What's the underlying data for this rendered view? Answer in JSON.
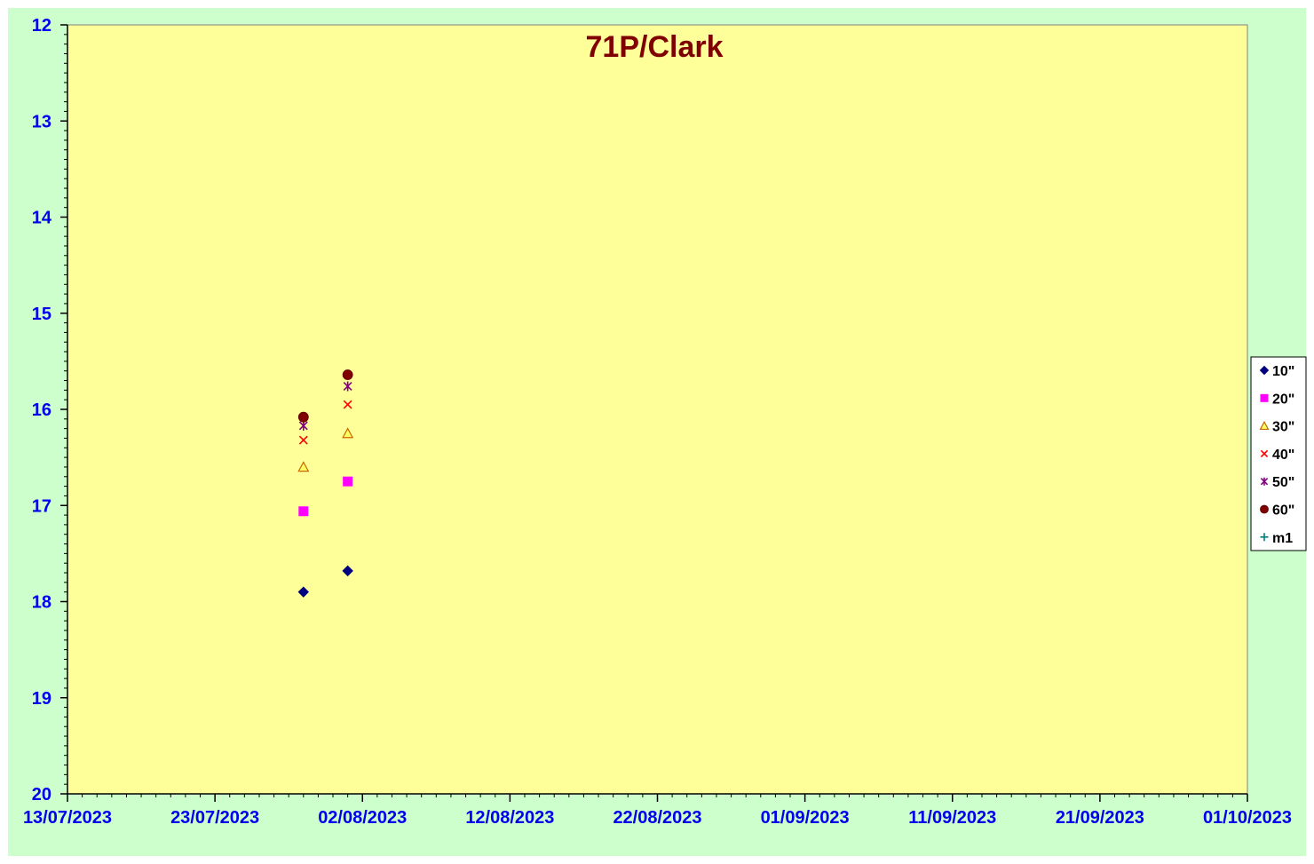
{
  "chart_data": {
    "type": "scatter",
    "title": "71P/Clark",
    "xlabel": "",
    "ylabel": "",
    "x_range": [
      "13/07/2023",
      "01/10/2023"
    ],
    "x_ticks": [
      "13/07/2023",
      "23/07/2023",
      "02/08/2023",
      "12/08/2023",
      "22/08/2023",
      "01/09/2023",
      "11/09/2023",
      "21/09/2023",
      "01/10/2023"
    ],
    "ylim": [
      12,
      20
    ],
    "y_inverted": true,
    "y_ticks": [
      "12",
      "13",
      "14",
      "15",
      "16",
      "17",
      "18",
      "19",
      "20"
    ],
    "grid": false,
    "legend_position": "right",
    "colors": {
      "page_background": "#ccffcc",
      "plot_background": "#ffff99",
      "axis": "#000000",
      "tick_labels": "#0000ee",
      "title": "#800000"
    },
    "series": [
      {
        "name": "10\"",
        "marker": "diamond",
        "color": "#000080",
        "x": [
          "29/07/2023",
          "01/08/2023"
        ],
        "y": [
          17.9,
          17.68
        ]
      },
      {
        "name": "20\"",
        "marker": "square",
        "color": "#ff00ff",
        "x": [
          "29/07/2023",
          "01/08/2023"
        ],
        "y": [
          17.06,
          16.75
        ]
      },
      {
        "name": "30\"",
        "marker": "triangle",
        "color": "#ffcc00",
        "x": [
          "29/07/2023",
          "01/08/2023"
        ],
        "y": [
          16.6,
          16.25
        ]
      },
      {
        "name": "40\"",
        "marker": "x",
        "color": "#ff0000",
        "x": [
          "29/07/2023",
          "01/08/2023"
        ],
        "y": [
          16.32,
          15.95
        ]
      },
      {
        "name": "50\"",
        "marker": "star",
        "color": "#800080",
        "x": [
          "29/07/2023",
          "01/08/2023"
        ],
        "y": [
          16.17,
          15.76
        ]
      },
      {
        "name": "60\"",
        "marker": "circle",
        "color": "#800000",
        "x": [
          "29/07/2023",
          "01/08/2023"
        ],
        "y": [
          16.08,
          15.64
        ]
      },
      {
        "name": "m1",
        "marker": "plus",
        "color": "#008080",
        "x": [],
        "y": []
      }
    ]
  }
}
